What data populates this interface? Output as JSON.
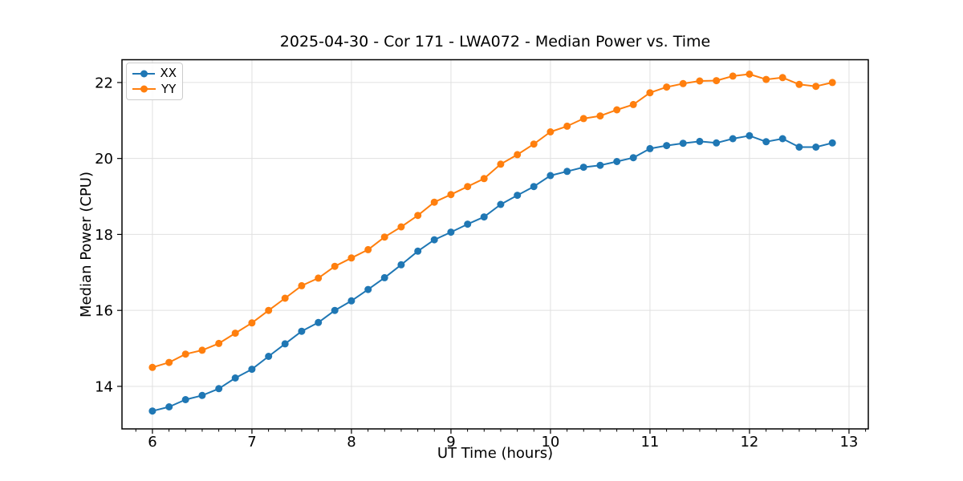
{
  "figure_title": "2025-04-30 - Cor 171 - LWA072 - Median Power vs. Time",
  "colors": {
    "xx_series": "#1f77b4",
    "yy_series": "#ff7f0e",
    "grid": "#e0e0e0",
    "axis": "#000000",
    "background": "#ffffff"
  },
  "legend": {
    "position": "upper-left",
    "entries": [
      "XX",
      "YY"
    ]
  },
  "chart_data": {
    "type": "line",
    "title": "2025-04-30 - Cor 171 - LWA072 - Median Power vs. Time",
    "xlabel": "UT Time (hours)",
    "ylabel": "Median Power (CPU)",
    "xlim": [
      5.694,
      13.194
    ],
    "ylim": [
      12.88,
      22.6
    ],
    "xticks": [
      6,
      7,
      8,
      9,
      10,
      11,
      12,
      13
    ],
    "yticks": [
      14,
      16,
      18,
      20,
      22
    ],
    "x_minor_tick_step": 0.1667,
    "grid": true,
    "marker": "circle",
    "x": [
      6.0,
      6.167,
      6.333,
      6.5,
      6.667,
      6.833,
      7.0,
      7.167,
      7.333,
      7.5,
      7.667,
      7.833,
      8.0,
      8.167,
      8.333,
      8.5,
      8.667,
      8.833,
      9.0,
      9.167,
      9.333,
      9.5,
      9.667,
      9.833,
      10.0,
      10.167,
      10.333,
      10.5,
      10.667,
      10.833,
      11.0,
      11.167,
      11.333,
      11.5,
      11.667,
      11.833,
      12.0,
      12.167,
      12.333,
      12.5,
      12.667,
      12.833
    ],
    "series": [
      {
        "name": "XX",
        "color": "#1f77b4",
        "values": [
          13.35,
          13.46,
          13.65,
          13.76,
          13.94,
          14.22,
          14.45,
          14.79,
          15.12,
          15.45,
          15.68,
          16.0,
          16.25,
          16.55,
          16.86,
          17.2,
          17.56,
          17.86,
          18.06,
          18.27,
          18.46,
          18.79,
          19.03,
          19.26,
          19.55,
          19.66,
          19.77,
          19.82,
          19.92,
          20.02,
          20.26,
          20.34,
          20.4,
          20.45,
          20.41,
          20.52,
          20.6,
          20.44,
          20.52,
          20.3,
          20.3,
          20.41
        ]
      },
      {
        "name": "YY",
        "color": "#ff7f0e",
        "values": [
          14.5,
          14.63,
          14.85,
          14.95,
          15.13,
          15.4,
          15.67,
          16.0,
          16.32,
          16.65,
          16.85,
          17.16,
          17.38,
          17.6,
          17.93,
          18.2,
          18.5,
          18.85,
          19.05,
          19.26,
          19.47,
          19.85,
          20.1,
          20.38,
          20.7,
          20.85,
          21.05,
          21.12,
          21.28,
          21.42,
          21.73,
          21.88,
          21.97,
          22.04,
          22.05,
          22.17,
          22.22,
          22.08,
          22.13,
          21.95,
          21.9,
          22.0
        ]
      }
    ]
  }
}
